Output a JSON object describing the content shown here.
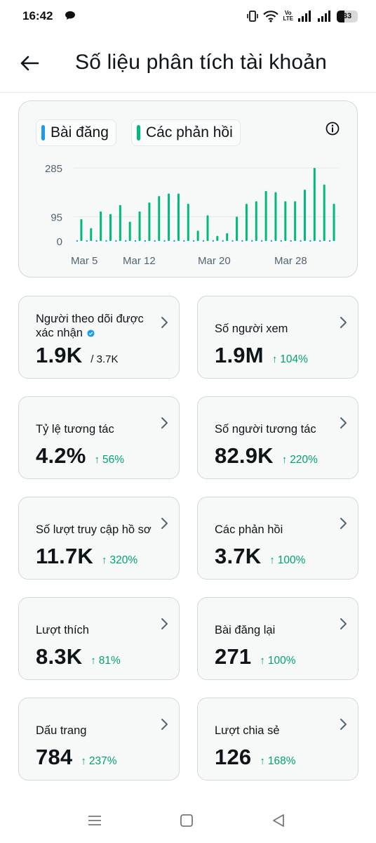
{
  "status_bar": {
    "time": "16:42",
    "volte_top": "Vo",
    "volte_bottom": "LTE",
    "battery": "33",
    "icons": [
      "chat-bubble-icon",
      "vibrate-icon",
      "wifi-icon",
      "signal-icon",
      "signal-icon",
      "battery-icon"
    ]
  },
  "header": {
    "title": "Số liệu phân tích tài khoản",
    "back_icon": "arrow-left-icon"
  },
  "legend": [
    {
      "label": "Bài đăng",
      "color": "#1d9bf0"
    },
    {
      "label": "Các phản hồi",
      "color": "#00ba7c"
    }
  ],
  "chart_data": {
    "type": "bar",
    "yticks": [
      0,
      95,
      285
    ],
    "ylim": [
      0,
      285
    ],
    "xtick_labels": [
      "Mar 5",
      "Mar 12",
      "Mar 20",
      "Mar 28"
    ],
    "series": [
      {
        "name": "Các phản hồi",
        "color": "#00ba7c",
        "values": [
          85,
          50,
          115,
          105,
          140,
          75,
          115,
          150,
          175,
          185,
          185,
          145,
          40,
          100,
          20,
          30,
          95,
          145,
          155,
          195,
          190,
          155,
          155,
          200,
          285,
          220,
          145
        ]
      }
    ]
  },
  "metrics": [
    {
      "label": "Người theo dõi được xác nhận",
      "value": "1.9K",
      "sub": "/ 3.7K",
      "change": "",
      "verified": true
    },
    {
      "label": "Số người xem",
      "value": "1.9M",
      "sub": "",
      "change": "104%"
    },
    {
      "label": "Tỷ lệ tương tác",
      "value": "4.2%",
      "sub": "",
      "change": "56%"
    },
    {
      "label": "Số người tương tác",
      "value": "82.9K",
      "sub": "",
      "change": "220%"
    },
    {
      "label": "Số lượt truy cập hồ sơ",
      "value": "11.7K",
      "sub": "",
      "change": "320%"
    },
    {
      "label": "Các phản hồi",
      "value": "3.7K",
      "sub": "",
      "change": "100%"
    },
    {
      "label": "Lượt thích",
      "value": "8.3K",
      "sub": "",
      "change": "81%"
    },
    {
      "label": "Bài đăng lại",
      "value": "271",
      "sub": "",
      "change": "100%"
    },
    {
      "label": "Dấu trang",
      "value": "784",
      "sub": "",
      "change": "237%"
    },
    {
      "label": "Lượt chia sẻ",
      "value": "126",
      "sub": "",
      "change": "168%"
    }
  ],
  "change_arrow": "↑",
  "navbar": [
    "menu-icon",
    "home-square-icon",
    "back-triangle-icon"
  ]
}
